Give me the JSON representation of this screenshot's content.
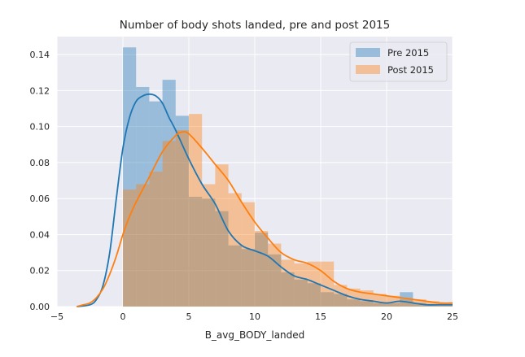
{
  "chart_data": {
    "type": "bar",
    "title": "Number of body shots landed, pre and post 2015",
    "xlabel": "B_avg_BODY_landed",
    "ylabel": "",
    "xlim": [
      -5,
      25
    ],
    "ylim": [
      0,
      0.15
    ],
    "xticks": [
      -5,
      0,
      5,
      10,
      15,
      20,
      25
    ],
    "yticks": [
      0.0,
      0.02,
      0.04,
      0.06,
      0.08,
      0.1,
      0.12,
      0.14
    ],
    "xtick_labels": [
      "−5",
      "0",
      "5",
      "10",
      "15",
      "20",
      "25"
    ],
    "ytick_labels": [
      "0.00",
      "0.02",
      "0.04",
      "0.06",
      "0.08",
      "0.10",
      "0.12",
      "0.14"
    ],
    "grid": true,
    "legend_position": "top-right",
    "series": [
      {
        "name": "Pre 2015",
        "color": "#1f77b4",
        "bin_edges": [
          0,
          1,
          2,
          3,
          4,
          5,
          6,
          7,
          8,
          9,
          10,
          11,
          12,
          13,
          14,
          15,
          16,
          17,
          18,
          19,
          20,
          21,
          22,
          23,
          24,
          25
        ],
        "density": [
          0.144,
          0.122,
          0.114,
          0.126,
          0.106,
          0.061,
          0.06,
          0.053,
          0.034,
          0.032,
          0.041,
          0.029,
          0.019,
          0.015,
          0.013,
          0.008,
          0.007,
          0.004,
          0.003,
          0.002,
          0.002,
          0.008,
          0.002,
          0.001,
          0.001
        ],
        "kde_x": [
          -3.5,
          -2.5,
          -2,
          -1.5,
          -1,
          -0.5,
          0,
          0.5,
          1,
          1.5,
          2,
          2.5,
          3,
          3.5,
          4,
          5,
          6,
          7,
          8,
          9,
          10,
          11,
          12,
          13,
          14,
          15,
          16,
          17,
          18,
          19,
          20,
          21,
          22,
          23,
          24,
          25
        ],
        "kde_y": [
          0.0,
          0.001,
          0.004,
          0.012,
          0.03,
          0.06,
          0.088,
          0.105,
          0.114,
          0.117,
          0.118,
          0.117,
          0.113,
          0.105,
          0.098,
          0.082,
          0.068,
          0.057,
          0.042,
          0.034,
          0.031,
          0.028,
          0.022,
          0.017,
          0.015,
          0.012,
          0.009,
          0.006,
          0.004,
          0.003,
          0.002,
          0.003,
          0.002,
          0.001,
          0.001,
          0.001
        ]
      },
      {
        "name": "Post 2015",
        "color": "#ff7f0e",
        "bin_edges": [
          0,
          1,
          2,
          3,
          4,
          5,
          6,
          7,
          8,
          9,
          10,
          11,
          12,
          13,
          14,
          15,
          16,
          17,
          18,
          19,
          20,
          21,
          22,
          23,
          24,
          25
        ],
        "density": [
          0.065,
          0.068,
          0.075,
          0.092,
          0.098,
          0.107,
          0.068,
          0.079,
          0.063,
          0.058,
          0.042,
          0.035,
          0.026,
          0.024,
          0.025,
          0.025,
          0.012,
          0.01,
          0.009,
          0.007,
          0.006,
          0.004,
          0.004,
          0.003,
          0.002
        ],
        "kde_x": [
          -3.5,
          -3,
          -2.5,
          -2,
          -1.5,
          -1,
          -0.5,
          0,
          0.5,
          1,
          2,
          3,
          4,
          4.5,
          5,
          6,
          7,
          8,
          9,
          10,
          11,
          12,
          13,
          14,
          15,
          16,
          17,
          18,
          19,
          20,
          21,
          22,
          23,
          24,
          25
        ],
        "kde_y": [
          0.0,
          0.001,
          0.002,
          0.005,
          0.01,
          0.018,
          0.028,
          0.04,
          0.05,
          0.058,
          0.072,
          0.086,
          0.095,
          0.097,
          0.096,
          0.088,
          0.079,
          0.07,
          0.058,
          0.047,
          0.038,
          0.03,
          0.026,
          0.024,
          0.02,
          0.014,
          0.01,
          0.008,
          0.007,
          0.006,
          0.005,
          0.004,
          0.003,
          0.002,
          0.002
        ]
      }
    ]
  }
}
